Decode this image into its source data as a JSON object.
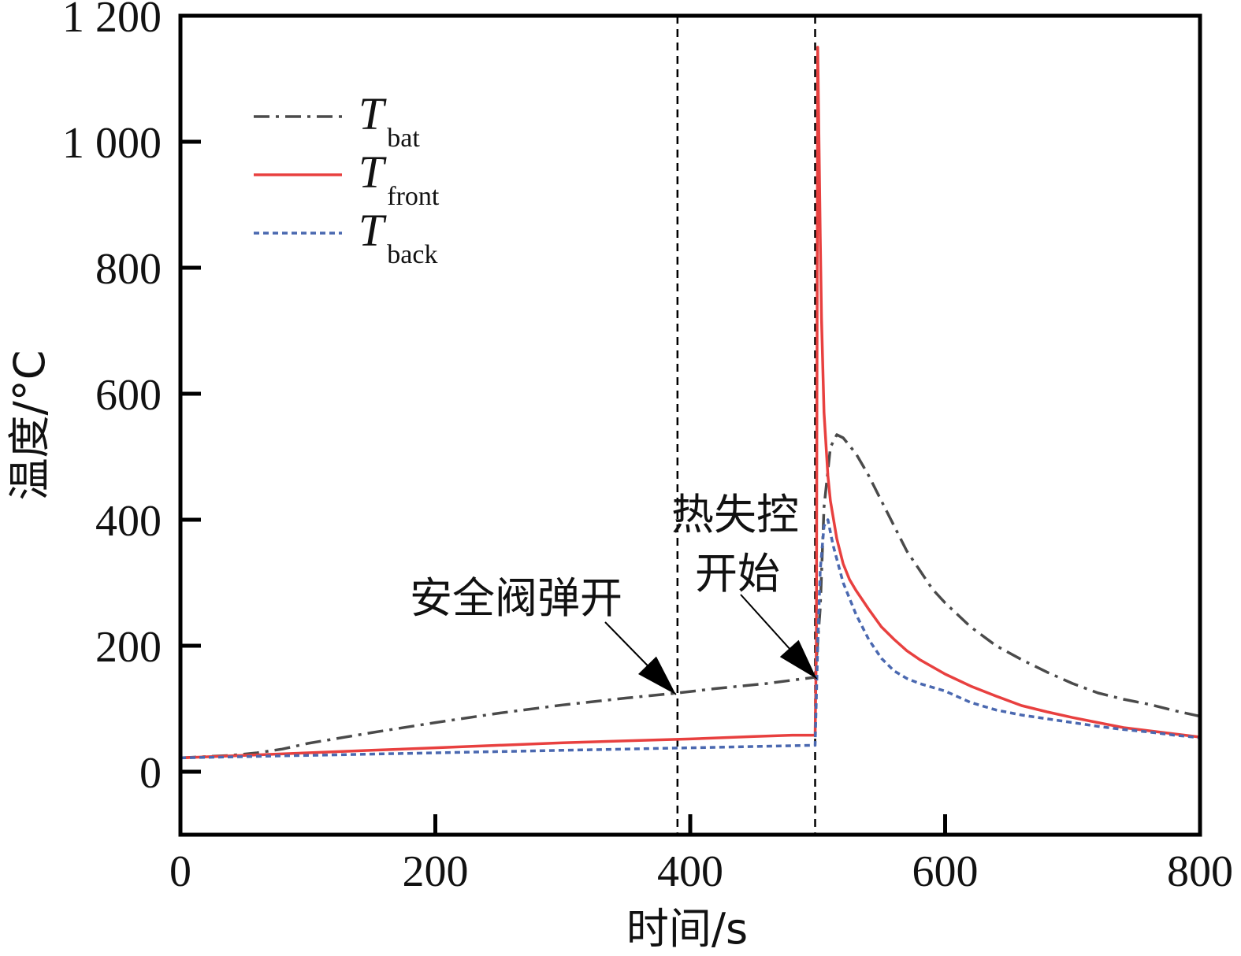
{
  "chart_data": {
    "type": "line",
    "title": "",
    "xlabel": "时间/s",
    "ylabel": "温度/°C",
    "xlim": [
      0,
      800
    ],
    "ylim": [
      -100,
      1200
    ],
    "xticks": [
      0,
      200,
      400,
      600,
      800
    ],
    "xtick_labels": [
      "0",
      "200",
      "400",
      "600",
      "800"
    ],
    "yticks": [
      0,
      200,
      400,
      600,
      800,
      1000,
      1200
    ],
    "ytick_labels": [
      "0",
      "200",
      "400",
      "600",
      "800",
      "1 000",
      "1 200"
    ],
    "grid": false,
    "legend_position": "top-left",
    "vlines": [
      {
        "x": 390,
        "style": "dashed",
        "color": "#000000"
      },
      {
        "x": 498,
        "style": "dashed",
        "color": "#000000"
      }
    ],
    "annotations": [
      {
        "text": "安全阀弹开",
        "point": [
          390,
          125
        ]
      },
      {
        "text_lines": [
          "热失控",
          "开始"
        ],
        "point": [
          498,
          150
        ]
      }
    ],
    "series": [
      {
        "name": "T_bat",
        "legend_main": "T",
        "legend_sub": "bat",
        "color": "#4a4a4a",
        "dash": "dashdot",
        "x": [
          0,
          20,
          40,
          60,
          80,
          100,
          150,
          200,
          250,
          300,
          350,
          390,
          420,
          460,
          498,
          502,
          505,
          510,
          515,
          520,
          530,
          540,
          550,
          560,
          570,
          580,
          590,
          600,
          620,
          640,
          660,
          680,
          700,
          720,
          740,
          760,
          780,
          800
        ],
        "values": [
          22,
          24,
          26,
          30,
          36,
          45,
          62,
          78,
          93,
          106,
          117,
          125,
          132,
          140,
          150,
          260,
          420,
          515,
          535,
          530,
          505,
          470,
          430,
          390,
          350,
          320,
          290,
          268,
          230,
          200,
          178,
          158,
          140,
          125,
          115,
          107,
          97,
          88
        ]
      },
      {
        "name": "T_front",
        "legend_main": "T",
        "legend_sub": "front",
        "color": "#e8403f",
        "dash": "solid",
        "x": [
          0,
          50,
          100,
          150,
          200,
          250,
          300,
          350,
          400,
          450,
          480,
          498,
          499,
          500,
          501,
          502,
          503,
          505,
          508,
          510,
          515,
          520,
          525,
          530,
          540,
          550,
          560,
          570,
          580,
          600,
          620,
          640,
          660,
          680,
          700,
          720,
          740,
          760,
          780,
          800
        ],
        "values": [
          22,
          26,
          30,
          34,
          38,
          42,
          46,
          49,
          52,
          56,
          58,
          58,
          200,
          1150,
          1000,
          850,
          720,
          570,
          470,
          430,
          370,
          330,
          305,
          288,
          258,
          230,
          210,
          192,
          178,
          155,
          136,
          120,
          105,
          95,
          86,
          78,
          70,
          65,
          60,
          55
        ]
      },
      {
        "name": "T_back",
        "legend_main": "T",
        "legend_sub": "back",
        "color": "#4a68b0",
        "dash": "dotted",
        "x": [
          0,
          50,
          100,
          150,
          200,
          250,
          300,
          350,
          400,
          450,
          498,
          500,
          502,
          505,
          508,
          512,
          520,
          530,
          540,
          550,
          560,
          570,
          580,
          600,
          620,
          640,
          660,
          680,
          700,
          720,
          740,
          760,
          780,
          800
        ],
        "values": [
          22,
          24,
          26,
          28,
          30,
          32,
          34,
          36,
          38,
          40,
          42,
          200,
          320,
          390,
          400,
          360,
          300,
          250,
          210,
          180,
          160,
          148,
          140,
          128,
          110,
          98,
          90,
          84,
          78,
          72,
          67,
          63,
          58,
          54
        ]
      }
    ]
  }
}
